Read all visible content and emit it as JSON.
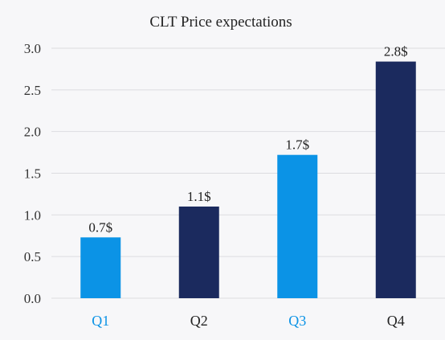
{
  "chart_data": {
    "type": "bar",
    "title": "CLT Price expectations",
    "categories": [
      "Q1",
      "Q2",
      "Q3",
      "Q4"
    ],
    "values": [
      0.73,
      1.1,
      1.72,
      2.84
    ],
    "data_labels": [
      "0.7$",
      "1.1$",
      "1.7$",
      "2.8$"
    ],
    "bar_colors": [
      "#0b93e6",
      "#1b2a5e",
      "#0b93e6",
      "#1b2a5e"
    ],
    "category_label_colors": [
      "#0b93e6",
      "#222222",
      "#0b93e6",
      "#222222"
    ],
    "xlabel": "",
    "ylabel": "",
    "ylim": [
      0,
      3.0
    ],
    "yticks": [
      "0.0",
      "0.5",
      "1.0",
      "1.5",
      "2.0",
      "2.5",
      "3.0"
    ],
    "grid": true,
    "legend": "none"
  }
}
